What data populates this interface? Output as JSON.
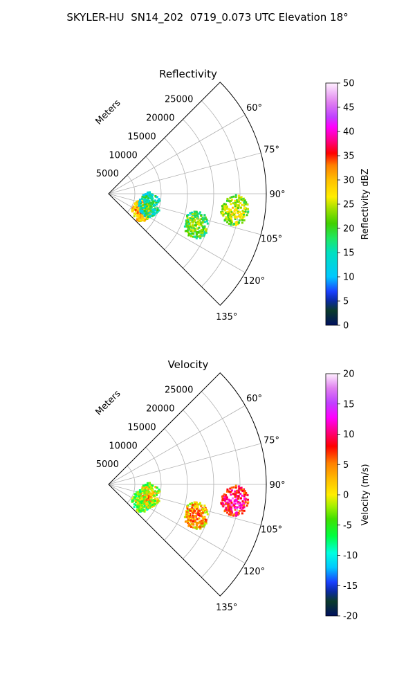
{
  "figure": {
    "title": "SKYLER-HU  SN14_202  0719_0.073 UTC Elevation 18°"
  },
  "chart_data": [
    {
      "type": "polar-sector",
      "title": "Reflectivity",
      "radial_label": "Meters",
      "radial_range": [
        0,
        30000
      ],
      "radial_ticks": [
        5000,
        10000,
        15000,
        20000,
        25000
      ],
      "angle_range_deg": [
        45,
        135
      ],
      "angle_ticks": [
        "60°",
        "75°",
        "90°",
        "105°",
        "120°",
        "135°"
      ],
      "angle_tick_values": [
        60,
        75,
        90,
        105,
        120,
        135
      ],
      "grid": true,
      "colorbar": {
        "label": "Reflectivity dBZ",
        "min": 0,
        "max": 50,
        "ticks": [
          0,
          5,
          10,
          15,
          20,
          25,
          30,
          35,
          40,
          45,
          50
        ]
      },
      "echoes": [
        {
          "range_m": 6800,
          "azimuth_deg": 116,
          "value": 33
        },
        {
          "range_m": 7800,
          "azimuth_deg": 104,
          "value": 20
        },
        {
          "range_m": 17500,
          "azimuth_deg": 109,
          "value": 24
        },
        {
          "range_m": 24000,
          "azimuth_deg": 97,
          "value": 27
        }
      ]
    },
    {
      "type": "polar-sector",
      "title": "Velocity",
      "radial_label": "Meters",
      "radial_range": [
        0,
        30000
      ],
      "radial_ticks": [
        5000,
        10000,
        15000,
        20000,
        25000
      ],
      "angle_range_deg": [
        45,
        135
      ],
      "angle_ticks": [
        "60°",
        "75°",
        "90°",
        "105°",
        "120°",
        "135°"
      ],
      "angle_tick_values": [
        60,
        75,
        90,
        105,
        120,
        135
      ],
      "grid": true,
      "colorbar": {
        "label": "Velocity (m/s)",
        "min": -20,
        "max": 20,
        "ticks": [
          -20,
          -15,
          -10,
          -5,
          0,
          5,
          10,
          15,
          20
        ]
      },
      "echoes": [
        {
          "range_m": 6800,
          "azimuth_deg": 116,
          "value": 1
        },
        {
          "range_m": 7800,
          "azimuth_deg": 104,
          "value": 3
        },
        {
          "range_m": 17500,
          "azimuth_deg": 109,
          "value": 7
        },
        {
          "range_m": 24000,
          "azimuth_deg": 97,
          "value": 13
        }
      ]
    }
  ],
  "colors": {
    "grid": "#b0b0b0",
    "frame": "#000000"
  }
}
